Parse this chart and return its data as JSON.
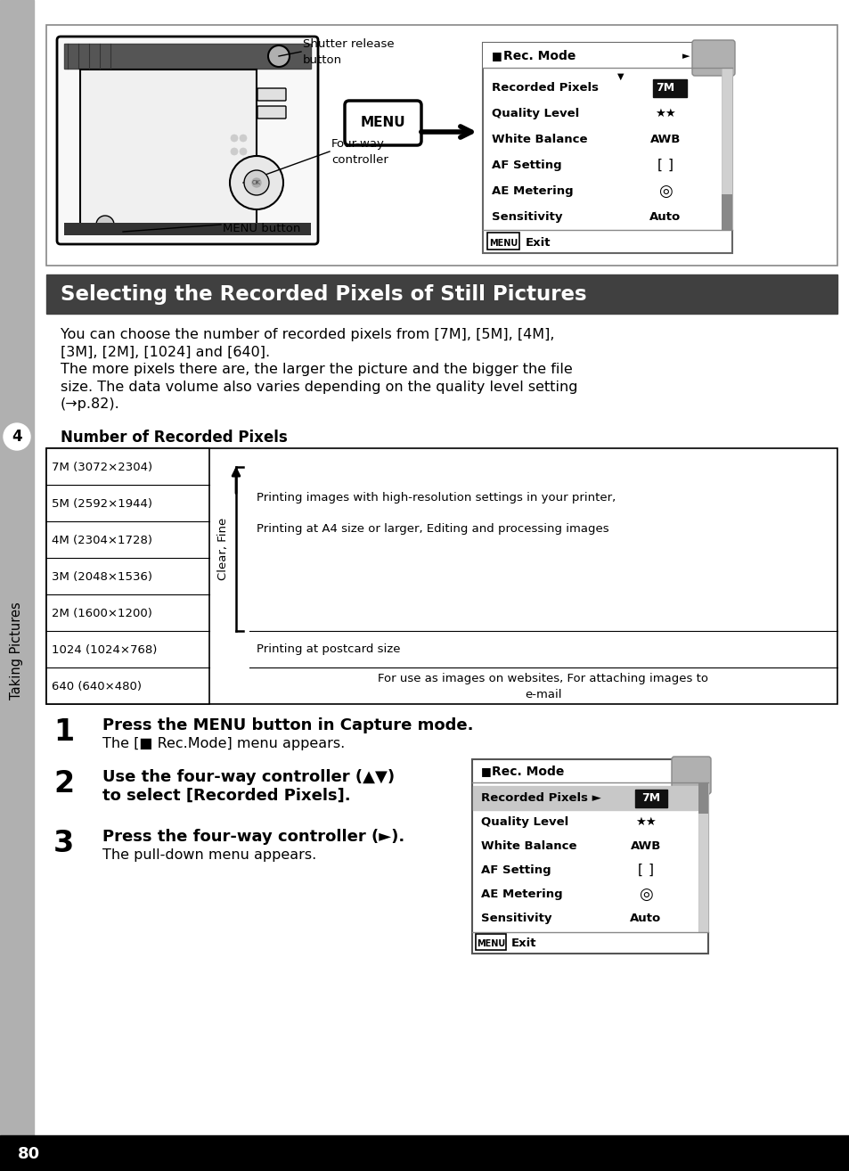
{
  "page_bg": "#ffffff",
  "sidebar_bg": "#b0b0b0",
  "sidebar_number": "4",
  "sidebar_text": "Taking Pictures",
  "footer_bg": "#000000",
  "footer_text": "80",
  "title_text": "Selecting the Recorded Pixels of Still Pictures",
  "title_bg": "#404040",
  "body_lines": [
    "You can choose the number of recorded pixels from [7M], [5M], [4M],",
    "[3M], [2M], [1024] and [640].",
    "The more pixels there are, the larger the picture and the bigger the file",
    "size. The data volume also varies depending on the quality level setting",
    "(→p.82)."
  ],
  "num_pixels_title": "Number of Recorded Pixels",
  "table_rows": [
    "7M (3072×2304)",
    "5M (2592×1944)",
    "4M (2304×1728)",
    "3M (2048×1536)",
    "2M (1600×1200)",
    "1024 (1024×768)",
    "640 (640×480)"
  ],
  "table_bracket_label": "Clear, Fine",
  "right_text_1a": "Printing images with high-resolution settings in your printer,",
  "right_text_1b": "Printing at A4 size or larger, Editing and processing images",
  "right_text_2": "Printing at postcard size",
  "right_text_3a": "For use as images on websites, For attaching images to",
  "right_text_3b": "e-mail",
  "menu_items": [
    [
      "Recorded Pixels",
      "7M"
    ],
    [
      "Quality Level",
      "★★"
    ],
    [
      "White Balance",
      "AWB"
    ],
    [
      "AF Setting",
      "[  ]"
    ],
    [
      "AE Metering",
      "◎"
    ],
    [
      "Sensitivity",
      "Auto"
    ]
  ],
  "step1_bold": "Press the MENU button in Capture mode.",
  "step1_normal": "The [■ Rec.Mode] menu appears.",
  "step2_bold1": "Use the four-way controller (▲▼)",
  "step2_bold2": "to select [Recorded Pixels].",
  "step3_bold": "Press the four-way controller (►).",
  "step3_normal": "The pull-down menu appears.",
  "label_shutter1": "Shutter release",
  "label_shutter2": "button",
  "label_fourway1": "Four-way",
  "label_fourway2": "controller",
  "label_menu_btn": "MENU button"
}
